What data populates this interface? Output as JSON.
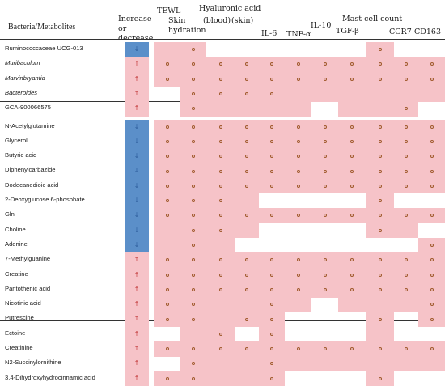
{
  "headers": {
    "bacteria": "Bacteria/Metabolites",
    "increase_decrease": "Increase or decrease",
    "tewl": "TEWL",
    "skin_hydration": "Skin hydration",
    "hyaluronic_acid": "Hyaluronic acid",
    "blood": "(blood)",
    "skin": "(skin)",
    "il6": "IL-6",
    "tnfa": "TNF-α",
    "il10": "IL-10",
    "mast_cell": "Mast cell count",
    "tgfb": "TGF-β",
    "ccr7": "CCR7",
    "cd163": "CD163"
  },
  "colors": {
    "positive": "#f6c3c8",
    "negative": "#ead1cc",
    "decrease_bar": "#5b8fc9",
    "dot": "#a05a2c",
    "arrow_down": "#2f5f9e",
    "arrow_up": "#c23b3b"
  },
  "rows": [
    {
      "label": "Ruminococcaceae UCG-013",
      "italic": false,
      "dir": "↓",
      "cells": [
        "p",
        "o",
        "",
        "",
        "",
        "",
        "",
        "",
        "o",
        "",
        ""
      ]
    },
    {
      "label": "Muribaculum",
      "italic": true,
      "dir": "↑",
      "cells": [
        "o",
        "o",
        "o",
        "o",
        "o",
        "o",
        "o",
        "o",
        "o",
        "o",
        "o"
      ]
    },
    {
      "label": "Marvinbryantia",
      "italic": true,
      "dir": "↑",
      "cells": [
        "o",
        "o",
        "o",
        "o",
        "o",
        "o",
        "o",
        "o",
        "o",
        "o",
        "o"
      ]
    },
    {
      "label": "Bacteroides",
      "italic": true,
      "dir": "↑",
      "cells": [
        "",
        "o",
        "o",
        "o",
        "o",
        "p",
        "p",
        "p",
        "p",
        "p",
        "p"
      ]
    },
    {
      "label": "GCA-900066575",
      "italic": false,
      "dir": "↑",
      "cells": [
        "",
        "o",
        "p",
        "p",
        "p",
        "p",
        "",
        "p",
        "p",
        "o",
        ""
      ]
    },
    {
      "label": "N-Acetylglutamine",
      "italic": false,
      "dir": "↓",
      "cells": [
        "o",
        "o",
        "o",
        "o",
        "o",
        "o",
        "o",
        "o",
        "o",
        "o",
        "o"
      ]
    },
    {
      "label": "Glycerol",
      "italic": false,
      "dir": "↓",
      "cells": [
        "o",
        "o",
        "o",
        "o",
        "o",
        "o",
        "o",
        "o",
        "o",
        "o",
        "o"
      ]
    },
    {
      "label": "Butyric acid",
      "italic": false,
      "dir": "↓",
      "cells": [
        "o",
        "o",
        "o",
        "o",
        "o",
        "o",
        "o",
        "o",
        "o",
        "o",
        "o"
      ]
    },
    {
      "label": "Diphenylcarbazide",
      "italic": false,
      "dir": "↓",
      "cells": [
        "o",
        "o",
        "o",
        "o",
        "o",
        "o",
        "o",
        "o",
        "o",
        "o",
        "o"
      ]
    },
    {
      "label": "Dodecanedioic acid",
      "italic": false,
      "dir": "↓",
      "cells": [
        "o",
        "o",
        "o",
        "o",
        "o",
        "o",
        "o",
        "o",
        "o",
        "o",
        "o"
      ]
    },
    {
      "label": "2-Deoxyglucose 6-phosphate",
      "italic": false,
      "dir": "↓",
      "cells": [
        "o",
        "o",
        "o",
        "p",
        "",
        "",
        "",
        "",
        "o",
        "",
        ""
      ]
    },
    {
      "label": "Gln",
      "italic": false,
      "dir": "↓",
      "cells": [
        "o",
        "o",
        "o",
        "o",
        "o",
        "o",
        "o",
        "o",
        "o",
        "o",
        "o"
      ]
    },
    {
      "label": "Choline",
      "italic": false,
      "dir": "↓",
      "cells": [
        "p",
        "o",
        "o",
        "p",
        "",
        "",
        "",
        "",
        "o",
        "p",
        ""
      ]
    },
    {
      "label": "Adenine",
      "italic": false,
      "dir": "↓",
      "cells": [
        "p",
        "o",
        "p",
        "",
        "",
        "",
        "",
        "",
        "",
        "",
        "o"
      ]
    },
    {
      "label": "7-Methylguanine",
      "italic": false,
      "dir": "↑",
      "cells": [
        "o",
        "o",
        "o",
        "o",
        "o",
        "o",
        "o",
        "o",
        "o",
        "o",
        "o"
      ]
    },
    {
      "label": "Creatine",
      "italic": false,
      "dir": "↑",
      "cells": [
        "o",
        "o",
        "o",
        "o",
        "o",
        "o",
        "o",
        "o",
        "o",
        "o",
        "o"
      ]
    },
    {
      "label": "Pantothenic acid",
      "italic": false,
      "dir": "↑",
      "cells": [
        "o",
        "o",
        "o",
        "o",
        "o",
        "o",
        "o",
        "o",
        "o",
        "o",
        "o"
      ]
    },
    {
      "label": "Nicotinic acid",
      "italic": false,
      "dir": "↑",
      "cells": [
        "o",
        "o",
        "p",
        "p",
        "o",
        "p",
        "",
        "p",
        "p",
        "p",
        "o"
      ]
    },
    {
      "label": "Putrescine",
      "italic": false,
      "dir": "↑",
      "cells": [
        "o",
        "o",
        "p",
        "o",
        "o",
        "",
        "",
        "",
        "o",
        "",
        "o"
      ]
    },
    {
      "label": "Ectoine",
      "italic": false,
      "dir": "↑",
      "cells": [
        "",
        "p",
        "o",
        "",
        "o",
        "",
        "",
        "",
        "p",
        "",
        ""
      ]
    },
    {
      "label": "Creatinine",
      "italic": false,
      "dir": "↑",
      "cells": [
        "o",
        "o",
        "o",
        "o",
        "o",
        "o",
        "o",
        "o",
        "o",
        "o",
        "o"
      ]
    },
    {
      "label": "N2-Succinylornithine",
      "italic": false,
      "dir": "↑",
      "cells": [
        "",
        "o",
        "p",
        "p",
        "o",
        "p",
        "p",
        "p",
        "p",
        "p",
        "p"
      ]
    },
    {
      "label": "3,4-Dihydroxyhydrocinnamic acid",
      "italic": false,
      "dir": "↑",
      "cells": [
        "o",
        "o",
        "p",
        "p",
        "o",
        "",
        "",
        "",
        "o",
        "",
        ""
      ]
    }
  ]
}
